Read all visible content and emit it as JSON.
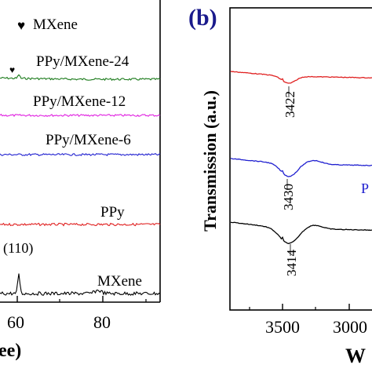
{
  "chart_data": [
    {
      "type": "line",
      "title": "",
      "xlabel": "ee)",
      "ylabel": "",
      "x_ticks": [
        "60",
        "80"
      ],
      "legend": {
        "marker": "♥",
        "label": "MXene"
      },
      "series": [
        {
          "name": "PPy/MXene-24",
          "color": "#1a7a1a"
        },
        {
          "name": "PPy/MXene-12",
          "color": "#e020e0"
        },
        {
          "name": "PPy/MXene-6",
          "color": "#2020d0"
        },
        {
          "name": "PPy",
          "color": "#e02020"
        },
        {
          "name": "MXene",
          "color": "#000000"
        }
      ],
      "annotations": [
        {
          "text": "(110)",
          "x": 61
        }
      ],
      "grid": false
    },
    {
      "type": "line",
      "panel_label": "(b)",
      "xlabel": "W",
      "ylabel": "Transmission (a.u.)",
      "x_ticks": [
        "3500",
        "3000"
      ],
      "x_reversed": true,
      "series": [
        {
          "name": "",
          "color": "#e02020",
          "peak": "3422"
        },
        {
          "name": "P",
          "color": "#2020d0",
          "peak": "3430"
        },
        {
          "name": "",
          "color": "#000000",
          "peak": "3414"
        }
      ],
      "grid": false
    }
  ],
  "colors": {
    "axis": "#000000",
    "panel_label": "#1a1a8c",
    "background": "#ffffff"
  }
}
